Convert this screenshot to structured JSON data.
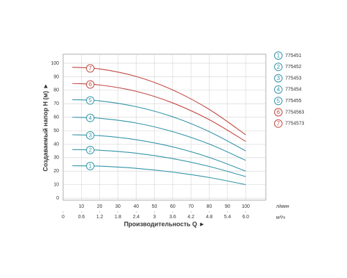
{
  "chart_data": {
    "type": "line",
    "y_label": "Создаваемый напор H (м) ►",
    "x_label": "Производительность Q ►",
    "x_unit": "л/мин",
    "x2_unit": "м³/ч",
    "x": [
      5,
      20,
      40,
      60,
      80,
      100
    ],
    "xlim": [
      0,
      111
    ],
    "xticks": [
      10,
      20,
      30,
      40,
      50,
      60,
      70,
      80,
      90,
      100
    ],
    "x2lim": [
      0,
      6.66
    ],
    "x2ticks": [
      0,
      0.6,
      1.2,
      1.8,
      2.4,
      3.0,
      3.6,
      4.2,
      4.8,
      5.4,
      {
        "value": 6,
        "label": "6.0"
      }
    ],
    "ylim": [
      -1.5,
      106.7
    ],
    "yticks": [
      0,
      10,
      20,
      30,
      40,
      50,
      60,
      70,
      80,
      90,
      100
    ],
    "grid": true,
    "series": [
      {
        "name": "775451",
        "marker_label": "1",
        "color": "#2e93a6",
        "values": [
          24,
          23.7,
          22.1,
          19.3,
          15.3,
          10
        ]
      },
      {
        "name": "775452",
        "marker_label": "2",
        "color": "#2e93a6",
        "values": [
          36,
          35.5,
          33.3,
          29.3,
          23.5,
          16
        ]
      },
      {
        "name": "775453",
        "marker_label": "3",
        "color": "#2e93a6",
        "values": [
          47,
          46.3,
          43.3,
          38,
          30.2,
          20
        ]
      },
      {
        "name": "775454",
        "marker_label": "4",
        "color": "#2e93a6",
        "values": [
          60,
          59.2,
          55.7,
          49.3,
          40.1,
          28
        ]
      },
      {
        "name": "775455",
        "marker_label": "5",
        "color": "#2e93a6",
        "values": [
          73,
          72.1,
          67.8,
          60.3,
          49.3,
          35
        ]
      },
      {
        "name": "7754563",
        "marker_label": "6",
        "color": "#c0443c",
        "values": [
          85,
          83.9,
          79.2,
          70.6,
          58.2,
          42
        ]
      },
      {
        "name": "7754573",
        "marker_label": "7",
        "color": "#c0443c",
        "values": [
          97,
          95.8,
          90.2,
          80.2,
          65.8,
          47
        ]
      }
    ]
  }
}
